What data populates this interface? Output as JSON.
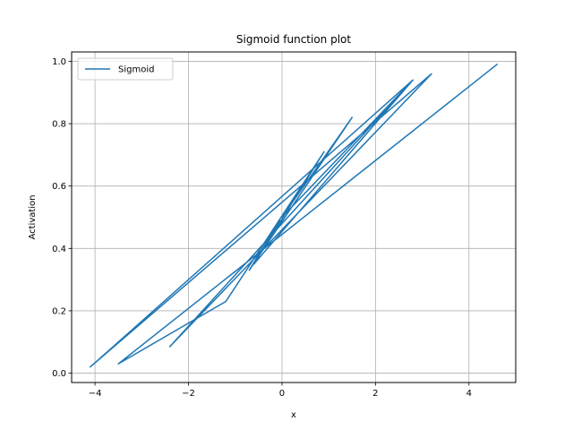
{
  "chart_data": {
    "type": "line",
    "title": "Sigmoid function plot",
    "xlabel": "x",
    "ylabel": "Activation",
    "xlim": [
      -4.5,
      5.0
    ],
    "ylim": [
      -0.03,
      1.03
    ],
    "xticks": [
      -4,
      -2,
      0,
      2,
      4
    ],
    "xtick_labels": [
      "−4",
      "−2",
      "0",
      "2",
      "4"
    ],
    "yticks": [
      0.0,
      0.2,
      0.4,
      0.6,
      0.8,
      1.0
    ],
    "ytick_labels": [
      "0.0",
      "0.2",
      "0.4",
      "0.6",
      "0.8",
      "1.0"
    ],
    "grid": true,
    "legend_position": "top-left",
    "series": [
      {
        "name": "Sigmoid",
        "color": "#1f77b4",
        "x": [
          -0.05,
          -0.7,
          1.5,
          0.0,
          2.8,
          -4.1,
          3.2,
          -2.4,
          2.8,
          -0.6,
          0.9,
          -1.2,
          -3.5,
          4.6
        ],
        "y": [
          0.49,
          0.33,
          0.82,
          0.5,
          0.94,
          0.02,
          0.96,
          0.085,
          0.94,
          0.35,
          0.71,
          0.23,
          0.03,
          0.99
        ]
      }
    ]
  }
}
